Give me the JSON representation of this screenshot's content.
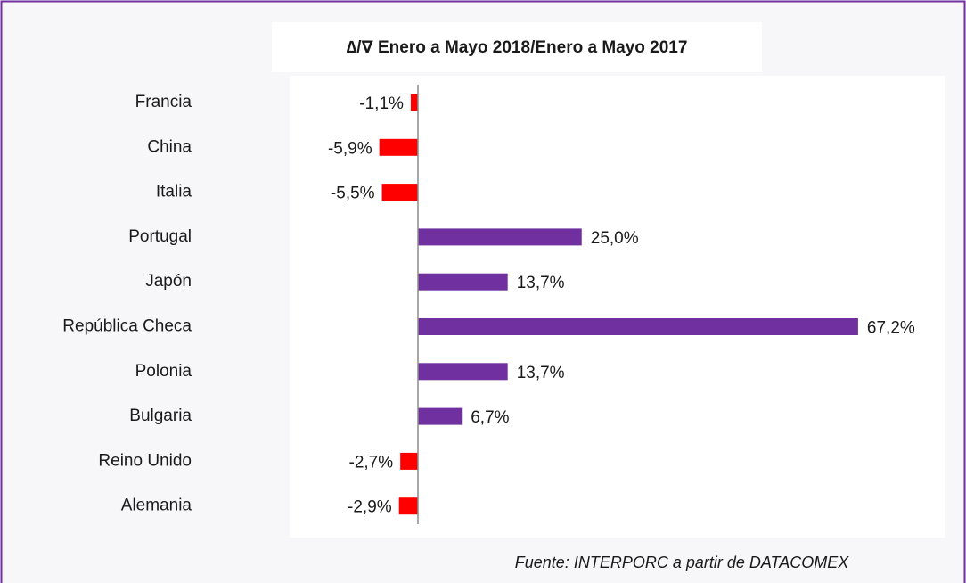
{
  "chart_data": {
    "type": "barh",
    "title": "∆/∇  Enero a Mayo 2018/Enero a Mayo 2017",
    "source": "Fuente: INTERPORC  a partir de DATACOMEX",
    "categories": [
      "Francia",
      "China",
      "Italia",
      "Portugal",
      "Japón",
      "República Checa",
      "Polonia",
      "Bulgaria",
      "Reino Unido",
      "Alemania"
    ],
    "values": [
      -1.1,
      -5.9,
      -5.5,
      25.0,
      13.7,
      67.2,
      13.7,
      6.7,
      -2.7,
      -2.9
    ],
    "value_labels": [
      "-1,1%",
      "-5,9%",
      "-5,5%",
      "25,0%",
      "13,7%",
      "67,2%",
      "13,7%",
      "6,7%",
      "-2,7%",
      "-2,9%"
    ],
    "color": "#7030a0",
    "negative_color": "#ff0000",
    "xlim": [
      -20,
      80
    ]
  }
}
